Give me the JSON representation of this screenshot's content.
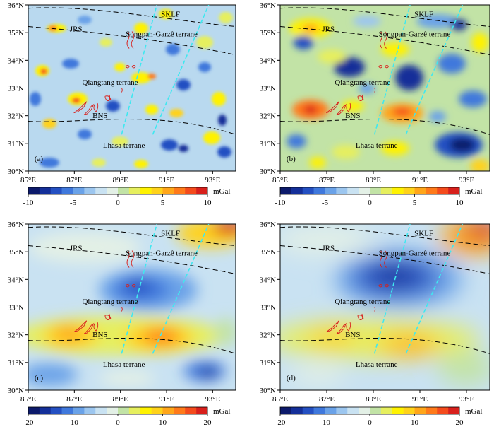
{
  "figure": {
    "colorbar_unit": "mGal",
    "colorbar_ticks_top": [
      "-10",
      "-5",
      "0",
      "5",
      "10"
    ],
    "colorbar_ticks_bottom": [
      "-20",
      "-10",
      "0",
      "10",
      "20"
    ],
    "colorbar_colors": [
      "#0c1a6b",
      "#142f99",
      "#2450c2",
      "#3f78dc",
      "#6aa2e8",
      "#9cc6ef",
      "#c9e2f2",
      "#e3f0e6",
      "#c2e3a6",
      "#e6ef5e",
      "#fff200",
      "#ffd21a",
      "#ffa61a",
      "#ff7a1a",
      "#f44b1c",
      "#d8201c"
    ],
    "panels": [
      {
        "label": "(a)",
        "id": "a"
      },
      {
        "label": "(b)",
        "id": "b"
      },
      {
        "label": "(c)",
        "id": "c"
      },
      {
        "label": "(d)",
        "id": "d"
      }
    ],
    "lat_ticks": [
      "30°N",
      "31°N",
      "32°N",
      "33°N",
      "34°N",
      "35°N",
      "36°N"
    ],
    "lon_ticks": [
      "85°E",
      "87°E",
      "89°E",
      "91°E",
      "93°E"
    ],
    "labels": {
      "sklf": "SKLF",
      "jrs": "JRS",
      "songpan": "Songpan-Garzê terrane",
      "qiangtang": "Qiangtang terrane",
      "bns": "BNS",
      "lhasa": "Lhasa terrane"
    }
  }
}
